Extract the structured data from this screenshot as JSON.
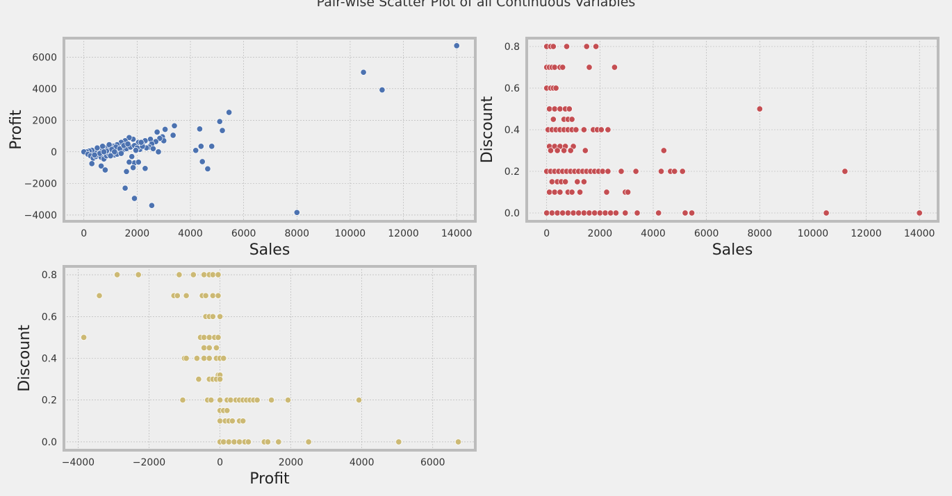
{
  "figure": {
    "title": "Pair-wise Scatter Plot of all Continuous Variables",
    "background": "#f0f0f0",
    "axes_background": "#eeeeee",
    "frame_color": "#bcbcbc",
    "grid_color": "#b0b0b0"
  },
  "chart_data": [
    {
      "type": "scatter",
      "name": "sales-vs-profit",
      "xlabel": "Sales",
      "ylabel": "Profit",
      "xlim": [
        -750,
        14700
      ],
      "ylim": [
        -4400,
        7200
      ],
      "xticks": [
        0,
        2000,
        4000,
        6000,
        8000,
        10000,
        12000,
        14000
      ],
      "yticks": [
        -4000,
        -2000,
        0,
        2000,
        4000,
        6000
      ],
      "grid": true,
      "color": "#4c72b0",
      "points": [
        [
          14000,
          6720
        ],
        [
          10500,
          5040
        ],
        [
          11200,
          3920
        ],
        [
          8000,
          -3840
        ],
        [
          5450,
          2500
        ],
        [
          5100,
          1920
        ],
        [
          5200,
          1350
        ],
        [
          4350,
          1450
        ],
        [
          4200,
          90
        ],
        [
          4400,
          350
        ],
        [
          4800,
          350
        ],
        [
          4450,
          -620
        ],
        [
          4650,
          -1080
        ],
        [
          3400,
          1650
        ],
        [
          3050,
          1420
        ],
        [
          3350,
          1050
        ],
        [
          2950,
          950
        ],
        [
          2750,
          1250
        ],
        [
          3000,
          700
        ],
        [
          2850,
          850
        ],
        [
          2500,
          800
        ],
        [
          2700,
          650
        ],
        [
          2550,
          500
        ],
        [
          2300,
          700
        ],
        [
          2450,
          300
        ],
        [
          2200,
          450
        ],
        [
          2050,
          600
        ],
        [
          1850,
          800
        ],
        [
          1700,
          900
        ],
        [
          1550,
          700
        ],
        [
          1400,
          600
        ],
        [
          1250,
          450
        ],
        [
          1100,
          350
        ],
        [
          1000,
          300
        ],
        [
          900,
          200
        ],
        [
          800,
          250
        ],
        [
          700,
          150
        ],
        [
          600,
          100
        ],
        [
          500,
          50
        ],
        [
          400,
          0
        ],
        [
          300,
          100
        ],
        [
          200,
          50
        ],
        [
          100,
          0
        ],
        [
          0,
          0
        ],
        [
          150,
          -150
        ],
        [
          250,
          -250
        ],
        [
          350,
          -400
        ],
        [
          450,
          -300
        ],
        [
          550,
          -200
        ],
        [
          650,
          -350
        ],
        [
          750,
          -450
        ],
        [
          850,
          -250
        ],
        [
          950,
          -150
        ],
        [
          1050,
          -100
        ],
        [
          1150,
          -200
        ],
        [
          1300,
          -50
        ],
        [
          1450,
          100
        ],
        [
          1600,
          200
        ],
        [
          1750,
          300
        ],
        [
          1900,
          400
        ],
        [
          2100,
          150
        ],
        [
          2350,
          250
        ],
        [
          2600,
          200
        ],
        [
          2800,
          0
        ],
        [
          1800,
          -300
        ],
        [
          1900,
          -700
        ],
        [
          1700,
          -650
        ],
        [
          1850,
          -1000
        ],
        [
          1600,
          -1250
        ],
        [
          2050,
          -650
        ],
        [
          2300,
          -1050
        ],
        [
          650,
          -900
        ],
        [
          800,
          -1150
        ],
        [
          300,
          -750
        ],
        [
          1550,
          -2300
        ],
        [
          1900,
          -2950
        ],
        [
          2550,
          -3400
        ],
        [
          1200,
          300
        ],
        [
          1350,
          200
        ],
        [
          950,
          450
        ],
        [
          700,
          350
        ],
        [
          500,
          250
        ],
        [
          1050,
          150
        ],
        [
          1500,
          400
        ],
        [
          1650,
          500
        ],
        [
          2000,
          250
        ],
        [
          2200,
          350
        ],
        [
          600,
          -100
        ],
        [
          850,
          50
        ],
        [
          1250,
          -150
        ],
        [
          1400,
          -100
        ],
        [
          1150,
          0
        ],
        [
          400,
          -200
        ],
        [
          750,
          0
        ],
        [
          1000,
          -250
        ],
        [
          1950,
          100
        ],
        [
          2150,
          600
        ]
      ]
    },
    {
      "type": "scatter",
      "name": "sales-vs-discount",
      "xlabel": "Sales",
      "ylabel": "Discount",
      "xlim": [
        -750,
        14700
      ],
      "ylim": [
        -0.04,
        0.84
      ],
      "xticks": [
        0,
        2000,
        4000,
        6000,
        8000,
        10000,
        12000,
        14000
      ],
      "yticks": [
        0.0,
        0.2,
        0.4,
        0.6,
        0.8
      ],
      "grid": true,
      "color": "#c44e52",
      "points": [
        [
          0,
          0.8
        ],
        [
          150,
          0.8
        ],
        [
          250,
          0.8
        ],
        [
          750,
          0.8
        ],
        [
          1500,
          0.8
        ],
        [
          1850,
          0.8
        ],
        [
          0,
          0.7
        ],
        [
          100,
          0.7
        ],
        [
          200,
          0.7
        ],
        [
          300,
          0.7
        ],
        [
          500,
          0.7
        ],
        [
          600,
          0.7
        ],
        [
          1600,
          0.7
        ],
        [
          2550,
          0.7
        ],
        [
          0,
          0.6
        ],
        [
          150,
          0.6
        ],
        [
          250,
          0.6
        ],
        [
          350,
          0.6
        ],
        [
          100,
          0.5
        ],
        [
          300,
          0.5
        ],
        [
          500,
          0.5
        ],
        [
          700,
          0.5
        ],
        [
          850,
          0.5
        ],
        [
          8000,
          0.5
        ],
        [
          250,
          0.45
        ],
        [
          650,
          0.45
        ],
        [
          800,
          0.45
        ],
        [
          950,
          0.45
        ],
        [
          50,
          0.4
        ],
        [
          200,
          0.4
        ],
        [
          350,
          0.4
        ],
        [
          500,
          0.4
        ],
        [
          650,
          0.4
        ],
        [
          800,
          0.4
        ],
        [
          950,
          0.4
        ],
        [
          1100,
          0.4
        ],
        [
          1400,
          0.4
        ],
        [
          1750,
          0.4
        ],
        [
          1900,
          0.4
        ],
        [
          2050,
          0.4
        ],
        [
          2300,
          0.4
        ],
        [
          100,
          0.32
        ],
        [
          300,
          0.32
        ],
        [
          500,
          0.32
        ],
        [
          700,
          0.32
        ],
        [
          1000,
          0.32
        ],
        [
          150,
          0.3
        ],
        [
          400,
          0.3
        ],
        [
          650,
          0.3
        ],
        [
          900,
          0.3
        ],
        [
          1450,
          0.3
        ],
        [
          4400,
          0.3
        ],
        [
          0,
          0.2
        ],
        [
          150,
          0.2
        ],
        [
          300,
          0.2
        ],
        [
          450,
          0.2
        ],
        [
          600,
          0.2
        ],
        [
          750,
          0.2
        ],
        [
          900,
          0.2
        ],
        [
          1050,
          0.2
        ],
        [
          1200,
          0.2
        ],
        [
          1350,
          0.2
        ],
        [
          1500,
          0.2
        ],
        [
          1650,
          0.2
        ],
        [
          1800,
          0.2
        ],
        [
          1950,
          0.2
        ],
        [
          2100,
          0.2
        ],
        [
          2300,
          0.2
        ],
        [
          2800,
          0.2
        ],
        [
          3350,
          0.2
        ],
        [
          4300,
          0.2
        ],
        [
          4650,
          0.2
        ],
        [
          4800,
          0.2
        ],
        [
          5100,
          0.2
        ],
        [
          11200,
          0.2
        ],
        [
          200,
          0.15
        ],
        [
          400,
          0.15
        ],
        [
          550,
          0.15
        ],
        [
          700,
          0.15
        ],
        [
          1150,
          0.15
        ],
        [
          1400,
          0.15
        ],
        [
          100,
          0.1
        ],
        [
          300,
          0.1
        ],
        [
          500,
          0.1
        ],
        [
          800,
          0.1
        ],
        [
          950,
          0.1
        ],
        [
          1250,
          0.1
        ],
        [
          2250,
          0.1
        ],
        [
          2950,
          0.1
        ],
        [
          3050,
          0.1
        ],
        [
          0,
          0.0
        ],
        [
          200,
          0.0
        ],
        [
          400,
          0.0
        ],
        [
          600,
          0.0
        ],
        [
          800,
          0.0
        ],
        [
          1000,
          0.0
        ],
        [
          1200,
          0.0
        ],
        [
          1400,
          0.0
        ],
        [
          1600,
          0.0
        ],
        [
          1800,
          0.0
        ],
        [
          2000,
          0.0
        ],
        [
          2200,
          0.0
        ],
        [
          2400,
          0.0
        ],
        [
          2600,
          0.0
        ],
        [
          2950,
          0.0
        ],
        [
          3400,
          0.0
        ],
        [
          4200,
          0.0
        ],
        [
          5200,
          0.0
        ],
        [
          5450,
          0.0
        ],
        [
          10500,
          0.0
        ],
        [
          14000,
          0.0
        ]
      ]
    },
    {
      "type": "scatter",
      "name": "profit-vs-discount",
      "xlabel": "Profit",
      "ylabel": "Discount",
      "xlim": [
        -4400,
        7200
      ],
      "ylim": [
        -0.04,
        0.84
      ],
      "xticks": [
        -4000,
        -2000,
        0,
        2000,
        4000,
        6000
      ],
      "yticks": [
        0.0,
        0.2,
        0.4,
        0.6,
        0.8
      ],
      "grid": true,
      "color": "#ccb974",
      "points": [
        [
          -2900,
          0.8
        ],
        [
          -2300,
          0.8
        ],
        [
          -1150,
          0.8
        ],
        [
          -750,
          0.8
        ],
        [
          -450,
          0.8
        ],
        [
          -300,
          0.8
        ],
        [
          -200,
          0.8
        ],
        [
          -50,
          0.8
        ],
        [
          -3400,
          0.7
        ],
        [
          -1300,
          0.7
        ],
        [
          -1200,
          0.7
        ],
        [
          -950,
          0.7
        ],
        [
          -500,
          0.7
        ],
        [
          -400,
          0.7
        ],
        [
          -200,
          0.7
        ],
        [
          -50,
          0.7
        ],
        [
          -400,
          0.6
        ],
        [
          -300,
          0.6
        ],
        [
          -200,
          0.6
        ],
        [
          0,
          0.6
        ],
        [
          -3840,
          0.5
        ],
        [
          -550,
          0.5
        ],
        [
          -450,
          0.5
        ],
        [
          -300,
          0.5
        ],
        [
          -150,
          0.5
        ],
        [
          -50,
          0.5
        ],
        [
          -450,
          0.45
        ],
        [
          -300,
          0.45
        ],
        [
          -100,
          0.45
        ],
        [
          -1000,
          0.4
        ],
        [
          -950,
          0.4
        ],
        [
          -650,
          0.4
        ],
        [
          -450,
          0.4
        ],
        [
          -300,
          0.4
        ],
        [
          -100,
          0.4
        ],
        [
          0,
          0.4
        ],
        [
          100,
          0.4
        ],
        [
          -50,
          0.32
        ],
        [
          0,
          0.32
        ],
        [
          -600,
          0.3
        ],
        [
          -300,
          0.3
        ],
        [
          -200,
          0.3
        ],
        [
          -100,
          0.3
        ],
        [
          0,
          0.3
        ],
        [
          -1050,
          0.2
        ],
        [
          -350,
          0.2
        ],
        [
          -250,
          0.2
        ],
        [
          0,
          0.2
        ],
        [
          200,
          0.2
        ],
        [
          300,
          0.2
        ],
        [
          450,
          0.2
        ],
        [
          550,
          0.2
        ],
        [
          650,
          0.2
        ],
        [
          750,
          0.2
        ],
        [
          850,
          0.2
        ],
        [
          950,
          0.2
        ],
        [
          1050,
          0.2
        ],
        [
          1450,
          0.2
        ],
        [
          1920,
          0.2
        ],
        [
          3920,
          0.2
        ],
        [
          0,
          0.15
        ],
        [
          100,
          0.15
        ],
        [
          200,
          0.15
        ],
        [
          0,
          0.1
        ],
        [
          150,
          0.1
        ],
        [
          250,
          0.1
        ],
        [
          350,
          0.1
        ],
        [
          550,
          0.1
        ],
        [
          650,
          0.1
        ],
        [
          0,
          0.0
        ],
        [
          100,
          0.0
        ],
        [
          250,
          0.0
        ],
        [
          400,
          0.0
        ],
        [
          550,
          0.0
        ],
        [
          700,
          0.0
        ],
        [
          800,
          0.0
        ],
        [
          1250,
          0.0
        ],
        [
          1350,
          0.0
        ],
        [
          1650,
          0.0
        ],
        [
          2500,
          0.0
        ],
        [
          5040,
          0.0
        ],
        [
          6720,
          0.0
        ]
      ]
    }
  ]
}
